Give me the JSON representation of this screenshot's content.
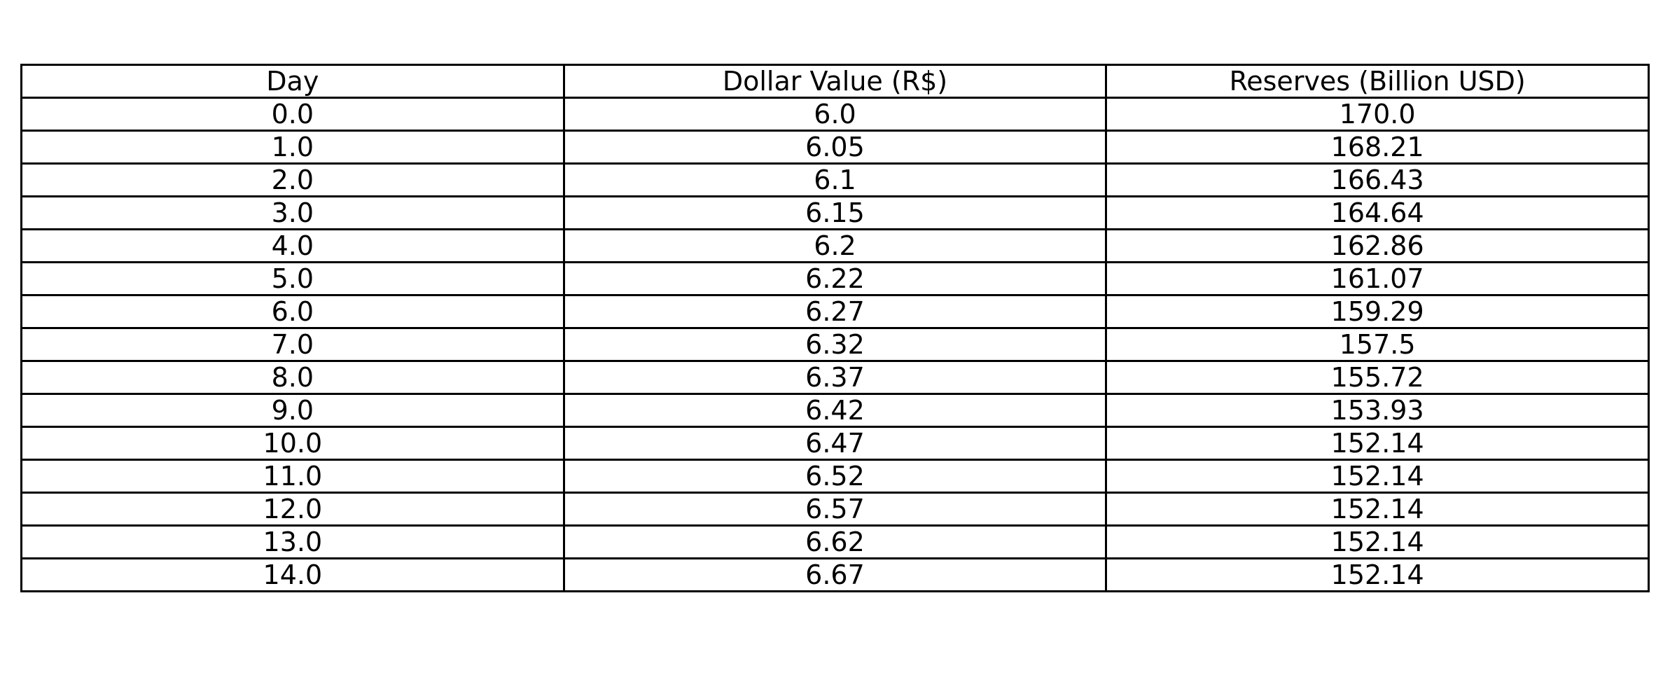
{
  "chart_data": {
    "type": "table",
    "columns": [
      "Day",
      "Dollar Value (R$)",
      "Reserves (Billion USD)"
    ],
    "rows": [
      [
        "0.0",
        "6.0",
        "170.0"
      ],
      [
        "1.0",
        "6.05",
        "168.21"
      ],
      [
        "2.0",
        "6.1",
        "166.43"
      ],
      [
        "3.0",
        "6.15",
        "164.64"
      ],
      [
        "4.0",
        "6.2",
        "162.86"
      ],
      [
        "5.0",
        "6.22",
        "161.07"
      ],
      [
        "6.0",
        "6.27",
        "159.29"
      ],
      [
        "7.0",
        "6.32",
        "157.5"
      ],
      [
        "8.0",
        "6.37",
        "155.72"
      ],
      [
        "9.0",
        "6.42",
        "153.93"
      ],
      [
        "10.0",
        "6.47",
        "152.14"
      ],
      [
        "11.0",
        "6.52",
        "152.14"
      ],
      [
        "12.0",
        "6.57",
        "152.14"
      ],
      [
        "13.0",
        "6.62",
        "152.14"
      ],
      [
        "14.0",
        "6.67",
        "152.14"
      ]
    ]
  }
}
